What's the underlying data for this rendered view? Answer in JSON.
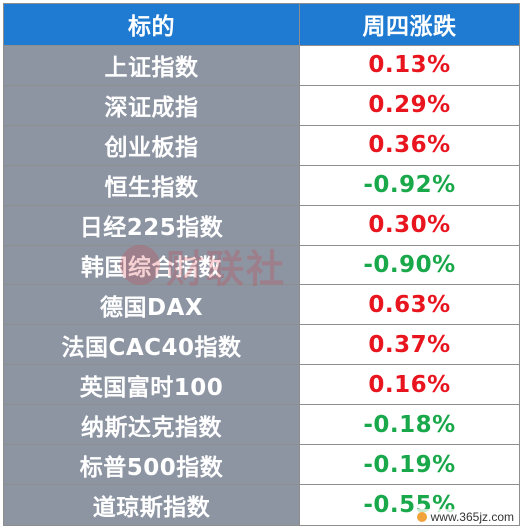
{
  "header": {
    "col_name": "标的",
    "col_change": "周四涨跌"
  },
  "rows": [
    {
      "name": "上证指数",
      "change": "0.13%",
      "direction": "up"
    },
    {
      "name": "深证成指",
      "change": "0.29%",
      "direction": "up"
    },
    {
      "name": "创业板指",
      "change": "0.36%",
      "direction": "up"
    },
    {
      "name": "恒生指数",
      "change": "-0.92%",
      "direction": "down"
    },
    {
      "name": "日经225指数",
      "change": "0.30%",
      "direction": "up"
    },
    {
      "name": "韩国综合指数",
      "change": "-0.90%",
      "direction": "down"
    },
    {
      "name": "德国DAX",
      "change": "0.63%",
      "direction": "up"
    },
    {
      "name": "法国CAC40指数",
      "change": "0.37%",
      "direction": "up"
    },
    {
      "name": "英国富时100",
      "change": "0.16%",
      "direction": "up"
    },
    {
      "name": "纳斯达克指数",
      "change": "-0.18%",
      "direction": "down"
    },
    {
      "name": "标普500指数",
      "change": "-0.19%",
      "direction": "down"
    },
    {
      "name": "道琼斯指数",
      "change": "-0.55%",
      "direction": "down"
    }
  ],
  "watermark": {
    "text": "财联社"
  },
  "site_mark": {
    "text": "www.365jz.com"
  },
  "colors": {
    "header_bg": "#1f7bd1",
    "name_bg": "#8d95a3",
    "up": "#e8141e",
    "down": "#19a84a"
  }
}
